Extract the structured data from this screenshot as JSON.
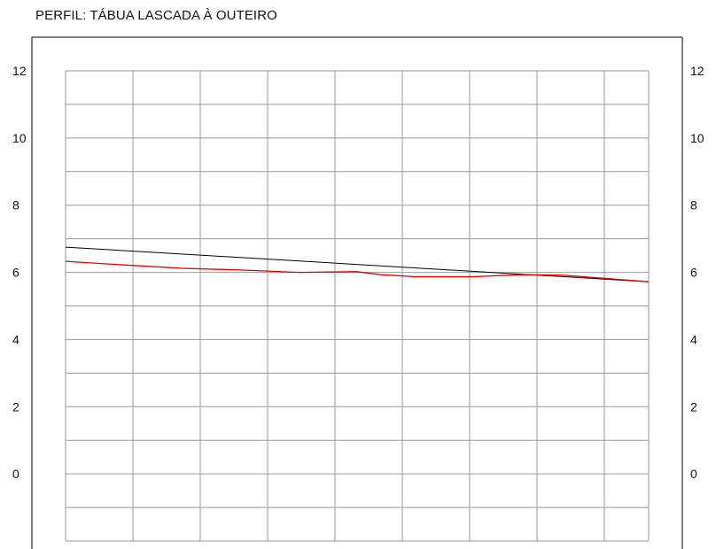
{
  "chart_data": {
    "type": "line",
    "title": "PERFIL: TÁBUA LASCADA À OUTEIRO",
    "xlabel": "",
    "ylabel": "",
    "ylim": [
      -2,
      12
    ],
    "yticks": [
      0,
      2,
      4,
      6,
      8,
      10,
      12
    ],
    "grid": true,
    "series": [
      {
        "color": "#000000",
        "x": [
          0,
          1
        ],
        "y": [
          6.75,
          5.72
        ]
      },
      {
        "color": "#e00000",
        "x": [
          0,
          0.1,
          0.2,
          0.3,
          0.4,
          0.5,
          0.54,
          0.6,
          0.7,
          0.78,
          0.85,
          1
        ],
        "y": [
          6.33,
          6.22,
          6.12,
          6.07,
          6.0,
          6.02,
          5.93,
          5.87,
          5.87,
          5.93,
          5.92,
          5.72
        ]
      }
    ]
  }
}
